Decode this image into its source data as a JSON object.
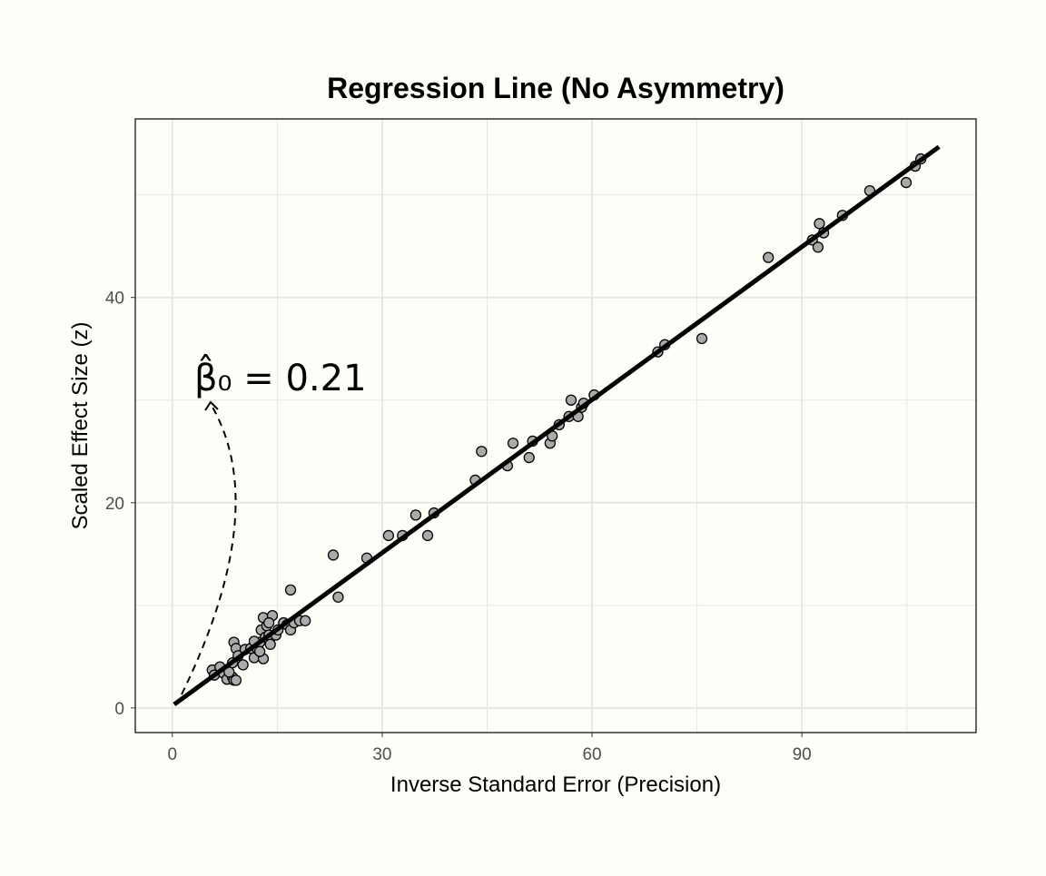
{
  "chart_data": {
    "type": "scatter",
    "title": "Regression Line (No Asymmetry)",
    "xlabel": "Inverse Standard Error (Precision)",
    "ylabel": "Scaled Effect Size (z)",
    "xlim": [
      -5.3,
      114.9
    ],
    "ylim": [
      -2.4,
      57.4
    ],
    "xticks": [
      0,
      30,
      60,
      90
    ],
    "yticks": [
      0,
      20,
      40
    ],
    "grid": true,
    "point_color": "#aaaaaa",
    "line_color": "#000000",
    "regression_line": {
      "intercept": 0.21,
      "slope": 0.497,
      "x_range": [
        0.26,
        109.6
      ]
    },
    "annotation": {
      "label": "β̂₀ = 0.21",
      "symbol": "β",
      "subscript": "0",
      "value_text": " = 0.21"
    },
    "points": [
      [
        5.7,
        3.7
      ],
      [
        6.8,
        4.0
      ],
      [
        6.0,
        3.2
      ],
      [
        7.3,
        3.4
      ],
      [
        7.8,
        2.8
      ],
      [
        8.6,
        3.0
      ],
      [
        8.8,
        2.7
      ],
      [
        9.1,
        2.7
      ],
      [
        8.1,
        3.5
      ],
      [
        8.6,
        4.4
      ],
      [
        8.8,
        6.4
      ],
      [
        9.1,
        5.8
      ],
      [
        9.4,
        5.1
      ],
      [
        10.1,
        4.2
      ],
      [
        10.4,
        5.7
      ],
      [
        11.2,
        5.8
      ],
      [
        11.7,
        4.9
      ],
      [
        12.2,
        5.7
      ],
      [
        12.5,
        6.4
      ],
      [
        12.7,
        7.6
      ],
      [
        13.0,
        8.8
      ],
      [
        13.3,
        6.9
      ],
      [
        13.5,
        8.0
      ],
      [
        13.8,
        7.1
      ],
      [
        14.0,
        6.2
      ],
      [
        13.0,
        4.8
      ],
      [
        12.5,
        5.5
      ],
      [
        14.3,
        9.0
      ],
      [
        13.8,
        8.3
      ],
      [
        14.8,
        7.1
      ],
      [
        15.1,
        7.6
      ],
      [
        15.9,
        8.3
      ],
      [
        16.4,
        8.1
      ],
      [
        16.9,
        7.6
      ],
      [
        16.9,
        11.5
      ],
      [
        17.4,
        8.3
      ],
      [
        18.2,
        8.5
      ],
      [
        19.0,
        8.5
      ],
      [
        11.7,
        6.5
      ],
      [
        23.0,
        14.9
      ],
      [
        23.7,
        10.8
      ],
      [
        27.8,
        14.6
      ],
      [
        30.9,
        16.8
      ],
      [
        32.9,
        16.8
      ],
      [
        34.8,
        18.8
      ],
      [
        36.5,
        16.8
      ],
      [
        37.4,
        19.0
      ],
      [
        43.3,
        22.2
      ],
      [
        44.2,
        25.0
      ],
      [
        47.9,
        23.6
      ],
      [
        48.7,
        25.8
      ],
      [
        51.0,
        24.4
      ],
      [
        51.5,
        26.0
      ],
      [
        54.0,
        25.8
      ],
      [
        54.3,
        26.5
      ],
      [
        55.3,
        27.6
      ],
      [
        56.7,
        28.4
      ],
      [
        57.0,
        30.0
      ],
      [
        58.0,
        28.4
      ],
      [
        58.5,
        29.3
      ],
      [
        58.8,
        29.7
      ],
      [
        60.3,
        30.5
      ],
      [
        69.4,
        34.7
      ],
      [
        70.4,
        35.4
      ],
      [
        75.7,
        36.0
      ],
      [
        85.2,
        43.9
      ],
      [
        91.5,
        45.6
      ],
      [
        92.3,
        44.9
      ],
      [
        92.5,
        47.2
      ],
      [
        93.1,
        46.3
      ],
      [
        95.8,
        48.0
      ],
      [
        99.7,
        50.4
      ],
      [
        104.9,
        51.2
      ],
      [
        106.2,
        52.8
      ],
      [
        107.0,
        53.5
      ]
    ]
  }
}
